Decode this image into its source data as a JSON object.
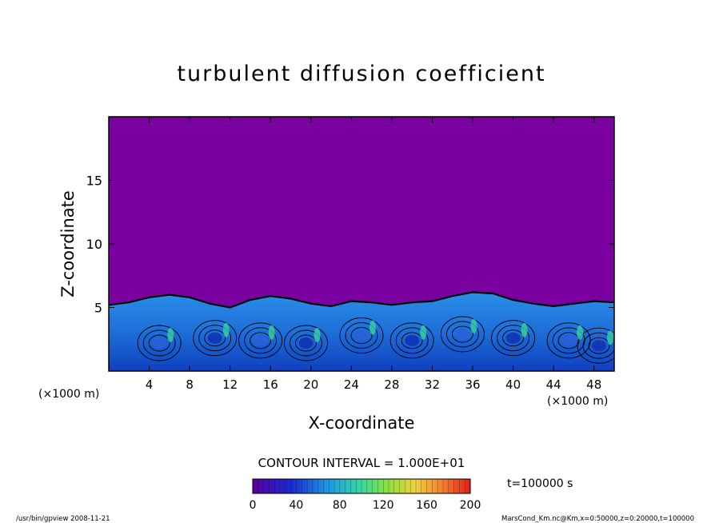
{
  "chart_data": {
    "type": "heatmap",
    "title": "turbulent diffusion coefficient",
    "xlabel": "X-coordinate",
    "ylabel": "Z-coordinate",
    "x_unit": "(×1000 m)",
    "y_unit": "(×1000 m)",
    "xlim": [
      0,
      50
    ],
    "ylim": [
      0,
      20
    ],
    "x_ticks": [
      4,
      8,
      12,
      16,
      20,
      24,
      28,
      32,
      36,
      40,
      44,
      48
    ],
    "y_ticks": [
      5,
      10,
      15
    ],
    "contour_interval": "CONTOUR INTERVAL = 1.000E+01",
    "colorbar": {
      "range": [
        0,
        200
      ],
      "ticks": [
        0,
        40,
        80,
        120,
        160,
        200
      ]
    },
    "background_color": "#7a00a0",
    "turbulent_layer": {
      "x": [
        0,
        2,
        4,
        6,
        8,
        10,
        12,
        14,
        16,
        18,
        20,
        22,
        24,
        26,
        28,
        30,
        32,
        34,
        36,
        38,
        40,
        42,
        44,
        46,
        48,
        50
      ],
      "top_z": [
        5.2,
        5.4,
        5.8,
        6.0,
        5.8,
        5.3,
        5.0,
        5.6,
        5.9,
        5.7,
        5.3,
        5.1,
        5.5,
        5.4,
        5.2,
        5.4,
        5.5,
        5.9,
        6.2,
        6.1,
        5.6,
        5.3,
        5.1,
        5.3,
        5.5,
        5.4
      ]
    },
    "time_label": "t=100000 s",
    "footer_left": "/usr/bin/gpview  2008-11-21",
    "footer_right": "MarsCond_Km.nc@Km,x=0:50000,z=0:20000,t=100000"
  }
}
